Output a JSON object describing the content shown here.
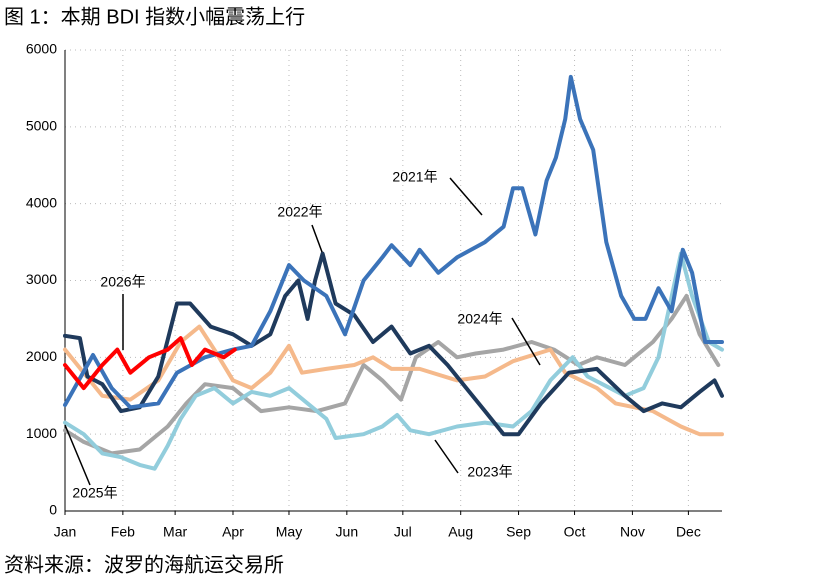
{
  "chart_data": {
    "type": "line",
    "title": "图 1：本期 BDI 指数小幅震荡上行",
    "source": "资料来源：波罗的海航运交易所",
    "xlim": [
      0,
      352
    ],
    "xticks": [
      {
        "value": 0,
        "label": "Jan"
      },
      {
        "value": 31,
        "label": "Feb"
      },
      {
        "value": 59,
        "label": "Mar"
      },
      {
        "value": 90,
        "label": "Apr"
      },
      {
        "value": 120,
        "label": "May"
      },
      {
        "value": 151,
        "label": "Jun"
      },
      {
        "value": 181,
        "label": "Jul"
      },
      {
        "value": 212,
        "label": "Aug"
      },
      {
        "value": 243,
        "label": "Sep"
      },
      {
        "value": 273,
        "label": "Oct"
      },
      {
        "value": 304,
        "label": "Nov"
      },
      {
        "value": 334,
        "label": "Dec"
      }
    ],
    "ylim": [
      0,
      6000
    ],
    "yticks": [
      0,
      1000,
      2000,
      3000,
      4000,
      5000,
      6000
    ],
    "grid": true,
    "series": [
      {
        "name": "2025年",
        "color": "#a5a5a5",
        "x": [
          0,
          10,
          25,
          40,
          55,
          65,
          75,
          90,
          105,
          120,
          135,
          150,
          160,
          170,
          180,
          188,
          200,
          210,
          220,
          235,
          250,
          262,
          275,
          285,
          300,
          315,
          325,
          333,
          340,
          350
        ],
        "values": [
          1050,
          900,
          750,
          800,
          1100,
          1400,
          1650,
          1600,
          1300,
          1350,
          1300,
          1400,
          1900,
          1700,
          1450,
          2000,
          2200,
          2000,
          2050,
          2100,
          2200,
          2100,
          1900,
          2000,
          1900,
          2200,
          2500,
          2800,
          2300,
          1900
        ]
      },
      {
        "name": "2024年",
        "color": "#f5b98b",
        "x": [
          0,
          20,
          35,
          50,
          62,
          72,
          80,
          90,
          100,
          110,
          120,
          127,
          140,
          155,
          165,
          175,
          190,
          210,
          225,
          240,
          260,
          268,
          285,
          295,
          315,
          330,
          340,
          352
        ],
        "values": [
          2100,
          1500,
          1450,
          1700,
          2200,
          2400,
          2100,
          1700,
          1600,
          1800,
          2150,
          1800,
          1850,
          1900,
          2000,
          1850,
          1850,
          1700,
          1750,
          1950,
          2100,
          1800,
          1600,
          1400,
          1300,
          1100,
          1000,
          1000
        ]
      },
      {
        "name": "2023年",
        "color": "#92cddc",
        "x": [
          0,
          10,
          20,
          30,
          40,
          48,
          55,
          62,
          70,
          80,
          90,
          100,
          110,
          120,
          130,
          140,
          145,
          160,
          170,
          178,
          185,
          195,
          210,
          225,
          240,
          250,
          260,
          272,
          280,
          300,
          310,
          318,
          330,
          336,
          345,
          352
        ],
        "values": [
          1150,
          1000,
          750,
          700,
          600,
          550,
          850,
          1200,
          1500,
          1600,
          1400,
          1550,
          1500,
          1600,
          1400,
          1200,
          950,
          1000,
          1100,
          1250,
          1050,
          1000,
          1100,
          1150,
          1100,
          1300,
          1700,
          2000,
          1750,
          1500,
          1600,
          2000,
          3350,
          2800,
          2200,
          2100
        ]
      },
      {
        "name": "2022年",
        "color": "#1f3a5c",
        "x": [
          0,
          8,
          12,
          20,
          30,
          40,
          50,
          60,
          67,
          78,
          90,
          100,
          110,
          118,
          125,
          130,
          134,
          138,
          145,
          155,
          165,
          175,
          185,
          195,
          205,
          215,
          225,
          235,
          243,
          255,
          270,
          285,
          300,
          310,
          320,
          330,
          340,
          348,
          352
        ],
        "values": [
          2280,
          2250,
          1750,
          1650,
          1300,
          1350,
          1750,
          2700,
          2700,
          2400,
          2300,
          2150,
          2300,
          2800,
          3000,
          2500,
          3000,
          3350,
          2700,
          2550,
          2200,
          2400,
          2050,
          2150,
          1900,
          1600,
          1300,
          1000,
          1000,
          1400,
          1800,
          1850,
          1500,
          1300,
          1400,
          1350,
          1550,
          1700,
          1500
        ]
      },
      {
        "name": "2021年",
        "color": "#3b73b9",
        "x": [
          0,
          15,
          25,
          35,
          50,
          60,
          75,
          90,
          100,
          110,
          120,
          128,
          140,
          150,
          160,
          170,
          175,
          185,
          190,
          200,
          210,
          225,
          235,
          240,
          245,
          252,
          258,
          263,
          268,
          271,
          276,
          283,
          290,
          298,
          305,
          311,
          318,
          325,
          331,
          336,
          343,
          352
        ],
        "values": [
          1380,
          2030,
          1600,
          1350,
          1400,
          1800,
          2000,
          2100,
          2150,
          2600,
          3200,
          3000,
          2800,
          2300,
          3000,
          3300,
          3460,
          3200,
          3400,
          3100,
          3300,
          3500,
          3700,
          4200,
          4200,
          3600,
          4300,
          4600,
          5100,
          5650,
          5100,
          4700,
          3500,
          2800,
          2500,
          2500,
          2900,
          2600,
          3400,
          3100,
          2200,
          2200
        ]
      },
      {
        "name": "2026年",
        "color": "#ff0000",
        "x": [
          0,
          10,
          20,
          28,
          35,
          45,
          55,
          62,
          68,
          75,
          85,
          91
        ],
        "values": [
          1900,
          1600,
          1900,
          2100,
          1800,
          2000,
          2100,
          2250,
          1900,
          2100,
          2000,
          2100
        ]
      }
    ]
  }
}
